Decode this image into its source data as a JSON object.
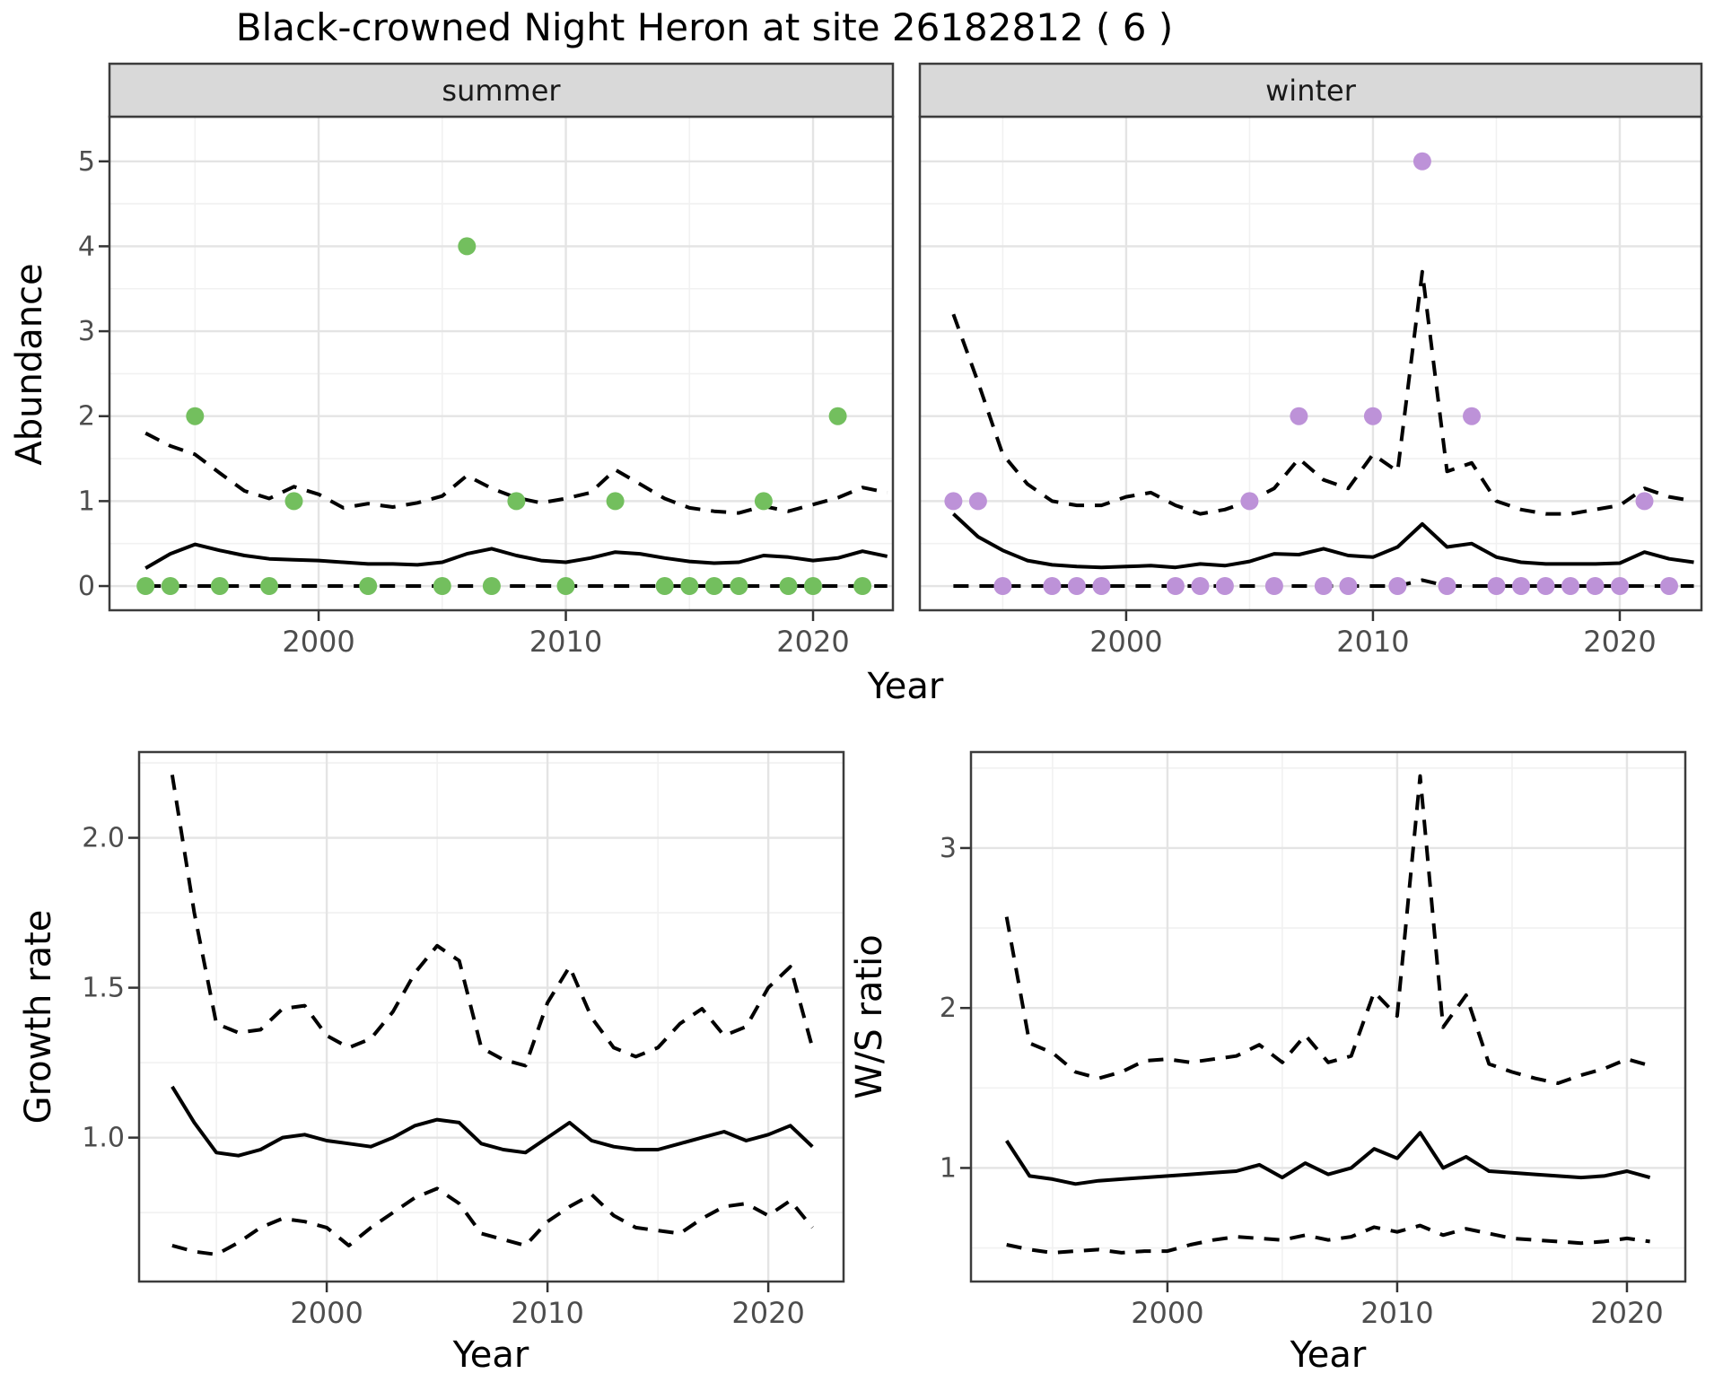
{
  "title": "Black-crowned Night Heron at site 26182812 ( 6 )",
  "colors": {
    "summer_point": "#73bf5e",
    "winter_point": "#bd92d8",
    "line": "#000000",
    "grid_major": "#e4e4e4",
    "grid_minor": "#f1f1f1",
    "strip_bg": "#d9d9d9",
    "panel_border": "#3c3c3c",
    "tick_mark": "#333333"
  },
  "chart_data": [
    {
      "id": "abundance_summer",
      "type": "line",
      "facet": "summer",
      "xlabel": "Year",
      "ylabel": "Abundance",
      "xlim": [
        1991.54,
        2023.23
      ],
      "ylim": [
        -0.285,
        5.526
      ],
      "x_ticks": {
        "values": [
          2000,
          2010,
          2020
        ],
        "labels": [
          "2000",
          "2010",
          "2020"
        ],
        "minor": [
          1995,
          2005,
          2015
        ]
      },
      "y_ticks": {
        "values": [
          0,
          1,
          2,
          3,
          4,
          5
        ],
        "labels": [
          "0",
          "1",
          "2",
          "3",
          "4",
          "5"
        ],
        "minor": [
          0.5,
          1.5,
          2.5,
          3.5,
          4.5
        ]
      },
      "x": [
        1993,
        1994,
        1995,
        1996,
        1997,
        1998,
        1999,
        2000,
        2001,
        2002,
        2003,
        2004,
        2005,
        2006,
        2007,
        2008,
        2009,
        2010,
        2011,
        2012,
        2013,
        2014,
        2015,
        2016,
        2017,
        2018,
        2019,
        2020,
        2021,
        2022,
        2023
      ],
      "series": [
        {
          "name": "median",
          "style": "solid",
          "values": [
            0.21,
            0.38,
            0.49,
            0.42,
            0.36,
            0.32,
            0.31,
            0.3,
            0.28,
            0.26,
            0.26,
            0.25,
            0.28,
            0.38,
            0.44,
            0.36,
            0.3,
            0.28,
            0.33,
            0.4,
            0.38,
            0.33,
            0.29,
            0.27,
            0.28,
            0.36,
            0.34,
            0.3,
            0.33,
            0.41,
            0.35
          ]
        },
        {
          "name": "upper_ci",
          "style": "dashed",
          "values": [
            1.8,
            1.65,
            1.55,
            1.33,
            1.12,
            1.03,
            1.17,
            1.08,
            0.92,
            0.97,
            0.93,
            0.98,
            1.06,
            1.3,
            1.15,
            1.04,
            0.98,
            1.03,
            1.1,
            1.37,
            1.2,
            1.03,
            0.92,
            0.88,
            0.86,
            0.94,
            0.88,
            0.96,
            1.04,
            1.16,
            1.1
          ]
        },
        {
          "name": "lower_ci",
          "style": "dashed",
          "values": [
            0,
            0,
            0,
            0,
            0,
            0,
            0,
            0,
            0,
            0,
            0,
            0,
            0,
            0,
            0,
            0,
            0,
            0,
            0,
            0,
            0,
            0,
            0,
            0,
            0,
            0,
            0,
            0,
            0,
            0,
            0
          ]
        }
      ],
      "points": {
        "color": "#73bf5e",
        "x": [
          1993,
          1994,
          1995,
          1996,
          1998,
          1999,
          2002,
          2005,
          2006,
          2007,
          2008,
          2010,
          2012,
          2014,
          2015,
          2016,
          2017,
          2018,
          2019,
          2020,
          2021,
          2022
        ],
        "y": [
          0,
          0,
          2,
          0,
          0,
          1,
          0,
          0,
          4,
          0,
          1,
          0,
          1,
          0,
          0,
          0,
          0,
          1,
          0,
          0,
          2,
          0
        ]
      }
    },
    {
      "id": "abundance_winter",
      "type": "line",
      "facet": "winter",
      "xlabel": "Year",
      "ylabel": "Abundance",
      "xlim": [
        1991.64,
        2023.31
      ],
      "ylim": [
        -0.285,
        5.526
      ],
      "x_ticks": {
        "values": [
          2000,
          2010,
          2020
        ],
        "labels": [
          "2000",
          "2010",
          "2020"
        ],
        "minor": [
          1995,
          2005,
          2015
        ]
      },
      "y_ticks": {
        "values": [
          0,
          1,
          2,
          3,
          4,
          5
        ],
        "labels": [
          "0",
          "1",
          "2",
          "3",
          "4",
          "5"
        ],
        "minor": [
          0.5,
          1.5,
          2.5,
          3.5,
          4.5
        ]
      },
      "x": [
        1993,
        1994,
        1995,
        1996,
        1997,
        1998,
        1999,
        2000,
        2001,
        2002,
        2003,
        2004,
        2005,
        2006,
        2007,
        2008,
        2009,
        2010,
        2011,
        2012,
        2013,
        2014,
        2015,
        2016,
        2017,
        2018,
        2019,
        2020,
        2021,
        2022,
        2023
      ],
      "series": [
        {
          "name": "median",
          "style": "solid",
          "values": [
            0.85,
            0.58,
            0.42,
            0.3,
            0.25,
            0.23,
            0.22,
            0.23,
            0.24,
            0.22,
            0.26,
            0.24,
            0.29,
            0.38,
            0.37,
            0.44,
            0.36,
            0.34,
            0.46,
            0.73,
            0.46,
            0.5,
            0.34,
            0.28,
            0.26,
            0.26,
            0.26,
            0.27,
            0.4,
            0.32,
            0.28
          ]
        },
        {
          "name": "upper_ci",
          "style": "dashed",
          "values": [
            3.2,
            2.4,
            1.55,
            1.2,
            1.0,
            0.95,
            0.95,
            1.05,
            1.1,
            0.95,
            0.85,
            0.9,
            1.0,
            1.15,
            1.5,
            1.25,
            1.15,
            1.55,
            1.35,
            3.7,
            1.35,
            1.45,
            1.0,
            0.9,
            0.85,
            0.85,
            0.9,
            0.95,
            1.15,
            1.05,
            1.0
          ]
        },
        {
          "name": "lower_ci",
          "style": "dashed",
          "values": [
            0,
            0,
            0,
            0,
            0,
            0,
            0,
            0,
            0,
            0,
            0,
            0,
            0,
            0,
            0,
            0,
            0,
            0,
            0,
            0.07,
            0,
            0,
            0,
            0,
            0,
            0,
            0,
            0,
            0,
            0,
            0
          ]
        }
      ],
      "points": {
        "color": "#bd92d8",
        "x": [
          1993,
          1994,
          1995,
          1997,
          1998,
          1999,
          2002,
          2003,
          2004,
          2005,
          2006,
          2007,
          2008,
          2009,
          2010,
          2011,
          2012,
          2013,
          2014,
          2015,
          2016,
          2017,
          2018,
          2019,
          2020,
          2021,
          2022
        ],
        "y": [
          1,
          1,
          0,
          0,
          0,
          0,
          0,
          0,
          0,
          1,
          0,
          2,
          0,
          0,
          2,
          0,
          5,
          0,
          2,
          0,
          0,
          0,
          0,
          0,
          0,
          1,
          0
        ]
      }
    },
    {
      "id": "growth_rate",
      "type": "line",
      "facet": null,
      "xlabel": "Year",
      "ylabel": "Growth rate",
      "xlim": [
        1991.5,
        2023.41
      ],
      "ylim": [
        0.52,
        2.286
      ],
      "x_ticks": {
        "values": [
          2000,
          2010,
          2020
        ],
        "labels": [
          "2000",
          "2010",
          "2020"
        ],
        "minor": [
          1995,
          2005,
          2015
        ]
      },
      "y_ticks": {
        "values": [
          1.0,
          1.5,
          2.0
        ],
        "labels": [
          "1.0",
          "1.5",
          "2.0"
        ],
        "minor": [
          0.75,
          1.25,
          1.75,
          2.25
        ]
      },
      "x": [
        1993,
        1994,
        1995,
        1996,
        1997,
        1998,
        1999,
        2000,
        2001,
        2002,
        2003,
        2004,
        2005,
        2006,
        2007,
        2008,
        2009,
        2010,
        2011,
        2012,
        2013,
        2014,
        2015,
        2016,
        2017,
        2018,
        2019,
        2020,
        2021,
        2022
      ],
      "series": [
        {
          "name": "median",
          "style": "solid",
          "values": [
            1.17,
            1.05,
            0.95,
            0.94,
            0.96,
            1.0,
            1.01,
            0.99,
            0.98,
            0.97,
            1.0,
            1.04,
            1.06,
            1.05,
            0.98,
            0.96,
            0.95,
            1.0,
            1.05,
            0.99,
            0.97,
            0.96,
            0.96,
            0.98,
            1.0,
            1.02,
            0.99,
            1.01,
            1.04,
            0.97
          ]
        },
        {
          "name": "upper_ci",
          "style": "dashed",
          "values": [
            2.21,
            1.75,
            1.38,
            1.35,
            1.36,
            1.43,
            1.44,
            1.34,
            1.3,
            1.33,
            1.42,
            1.55,
            1.64,
            1.59,
            1.3,
            1.26,
            1.24,
            1.45,
            1.57,
            1.4,
            1.3,
            1.27,
            1.3,
            1.38,
            1.43,
            1.34,
            1.37,
            1.5,
            1.57,
            1.3
          ]
        },
        {
          "name": "lower_ci",
          "style": "dashed",
          "values": [
            0.64,
            0.62,
            0.61,
            0.65,
            0.7,
            0.73,
            0.72,
            0.7,
            0.64,
            0.7,
            0.75,
            0.8,
            0.83,
            0.78,
            0.68,
            0.66,
            0.64,
            0.72,
            0.77,
            0.81,
            0.74,
            0.7,
            0.69,
            0.68,
            0.73,
            0.77,
            0.78,
            0.74,
            0.79,
            0.7
          ]
        }
      ],
      "points": null
    },
    {
      "id": "ws_ratio",
      "type": "line",
      "facet": null,
      "xlabel": "Year",
      "ylabel": "W/S ratio",
      "xlim": [
        1991.45,
        2022.54
      ],
      "ylim": [
        0.29,
        3.6
      ],
      "x_ticks": {
        "values": [
          2000,
          2010,
          2020
        ],
        "labels": [
          "2000",
          "2010",
          "2020"
        ],
        "minor": [
          1995,
          2005,
          2015
        ]
      },
      "y_ticks": {
        "values": [
          1,
          2,
          3
        ],
        "labels": [
          "1",
          "2",
          "3"
        ],
        "minor": [
          0.5,
          1.5,
          2.5,
          3.5
        ]
      },
      "x": [
        1993,
        1994,
        1995,
        1996,
        1997,
        1998,
        1999,
        2000,
        2001,
        2002,
        2003,
        2004,
        2005,
        2006,
        2007,
        2008,
        2009,
        2010,
        2011,
        2012,
        2013,
        2014,
        2015,
        2016,
        2017,
        2018,
        2019,
        2020,
        2021
      ],
      "series": [
        {
          "name": "median",
          "style": "solid",
          "values": [
            1.17,
            0.95,
            0.93,
            0.9,
            0.92,
            0.93,
            0.94,
            0.95,
            0.96,
            0.97,
            0.98,
            1.02,
            0.94,
            1.03,
            0.96,
            1.0,
            1.12,
            1.06,
            1.22,
            1.0,
            1.07,
            0.98,
            0.97,
            0.96,
            0.95,
            0.94,
            0.95,
            0.98,
            0.94
          ]
        },
        {
          "name": "upper_ci",
          "style": "dashed",
          "values": [
            2.57,
            1.78,
            1.72,
            1.6,
            1.56,
            1.6,
            1.67,
            1.68,
            1.66,
            1.68,
            1.7,
            1.77,
            1.66,
            1.83,
            1.66,
            1.7,
            2.1,
            1.95,
            3.45,
            1.88,
            2.08,
            1.65,
            1.6,
            1.56,
            1.53,
            1.58,
            1.62,
            1.68,
            1.64
          ]
        },
        {
          "name": "lower_ci",
          "style": "dashed",
          "values": [
            0.52,
            0.49,
            0.47,
            0.48,
            0.49,
            0.47,
            0.48,
            0.48,
            0.52,
            0.55,
            0.57,
            0.56,
            0.55,
            0.58,
            0.55,
            0.57,
            0.63,
            0.6,
            0.64,
            0.58,
            0.62,
            0.59,
            0.56,
            0.55,
            0.54,
            0.53,
            0.54,
            0.56,
            0.54
          ]
        }
      ],
      "points": null
    }
  ]
}
